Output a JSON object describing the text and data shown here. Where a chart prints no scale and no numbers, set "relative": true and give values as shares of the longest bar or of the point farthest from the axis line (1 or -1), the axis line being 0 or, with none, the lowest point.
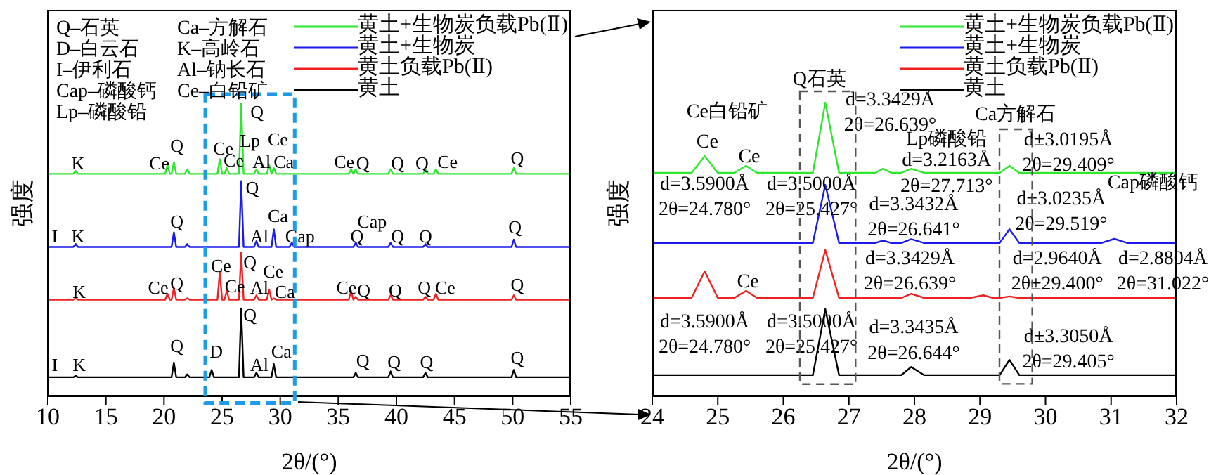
{
  "chart_data": [
    {
      "type": "line",
      "relative": true,
      "xlabel": "2θ/(°)",
      "ylabel": "强度",
      "xlim": [
        10,
        55
      ],
      "xticks": [
        10,
        15,
        20,
        25,
        30,
        35,
        40,
        45,
        50,
        55
      ],
      "legend": "top right",
      "marker": "none",
      "line_style": "solid",
      "x": [
        10,
        12.2,
        12.4,
        12.6,
        20.1,
        20.3,
        20.5,
        20.65,
        20.85,
        21.05,
        21.8,
        22.0,
        22.2,
        23.9,
        24.1,
        24.3,
        24.6,
        24.8,
        25.0,
        25.2,
        25.4,
        25.6,
        26.45,
        26.64,
        26.85,
        27.75,
        27.95,
        28.15,
        28.85,
        29.05,
        29.25,
        29.45,
        29.65,
        30.8,
        31.0,
        31.2,
        35.9,
        36.1,
        36.3,
        36.5,
        36.7,
        39.3,
        39.5,
        39.7,
        42.3,
        42.5,
        42.7,
        43.2,
        43.4,
        43.6,
        49.9,
        50.1,
        50.3,
        55
      ],
      "series": [
        {
          "name": "黄土+生物炭负载Pb(Ⅱ)",
          "color": "#2ee62e",
          "values": [
            0.76,
            0.76,
            0.77,
            0.76,
            0.76,
            0.79,
            0.76,
            0.76,
            0.8,
            0.76,
            0.76,
            0.775,
            0.76,
            0.76,
            0.76,
            0.76,
            0.76,
            0.81,
            0.76,
            0.76,
            0.78,
            0.76,
            0.76,
            1,
            0.76,
            0.76,
            0.775,
            0.76,
            0.76,
            0.79,
            0.76,
            0.78,
            0.76,
            0.76,
            0.76,
            0.76,
            0.76,
            0.775,
            0.76,
            0.775,
            0.76,
            0.76,
            0.775,
            0.76,
            0.76,
            0.775,
            0.76,
            0.76,
            0.775,
            0.76,
            0.76,
            0.78,
            0.76,
            0.76
          ]
        },
        {
          "name": "黄土+生物炭",
          "color": "#1a1aee",
          "values": [
            0.51,
            0.51,
            0.52,
            0.51,
            0.51,
            0.51,
            0.51,
            0.51,
            0.56,
            0.51,
            0.51,
            0.52,
            0.51,
            0.51,
            0.51,
            0.51,
            0.51,
            0.51,
            0.51,
            0.51,
            0.51,
            0.51,
            0.51,
            0.735,
            0.51,
            0.51,
            0.53,
            0.51,
            0.51,
            0.51,
            0.51,
            0.57,
            0.51,
            0.51,
            0.525,
            0.51,
            0.51,
            0.51,
            0.51,
            0.525,
            0.51,
            0.51,
            0.525,
            0.51,
            0.51,
            0.52,
            0.51,
            0.51,
            0.51,
            0.51,
            0.51,
            0.535,
            0.51,
            0.51
          ]
        },
        {
          "name": "黄土负载Pb(Ⅱ)",
          "color": "#ee2222",
          "values": [
            0.33,
            0.33,
            0.335,
            0.33,
            0.33,
            0.35,
            0.33,
            0.33,
            0.37,
            0.33,
            0.33,
            0.335,
            0.33,
            0.33,
            0.33,
            0.33,
            0.33,
            0.425,
            0.33,
            0.33,
            0.36,
            0.33,
            0.33,
            0.49,
            0.33,
            0.33,
            0.345,
            0.33,
            0.33,
            0.365,
            0.33,
            0.335,
            0.33,
            0.33,
            0.33,
            0.33,
            0.33,
            0.36,
            0.33,
            0.34,
            0.33,
            0.33,
            0.345,
            0.33,
            0.33,
            0.34,
            0.33,
            0.33,
            0.35,
            0.33,
            0.33,
            0.345,
            0.33,
            0.33
          ]
        },
        {
          "name": "黄土",
          "color": "#000000",
          "values": [
            0.065,
            0.065,
            0.07,
            0.065,
            0.065,
            0.065,
            0.065,
            0.065,
            0.115,
            0.065,
            0.065,
            0.075,
            0.065,
            0.065,
            0.09,
            0.065,
            0.065,
            0.065,
            0.065,
            0.065,
            0.065,
            0.065,
            0.065,
            0.3,
            0.065,
            0.065,
            0.08,
            0.065,
            0.065,
            0.065,
            0.065,
            0.11,
            0.065,
            0.065,
            0.065,
            0.065,
            0.065,
            0.065,
            0.065,
            0.08,
            0.065,
            0.065,
            0.085,
            0.065,
            0.065,
            0.08,
            0.065,
            0.065,
            0.065,
            0.065,
            0.065,
            0.09,
            0.065,
            0.065
          ]
        }
      ],
      "annotations": [
        "Q–石英",
        "Ca–方解石",
        "D–白云石",
        "K–高岭石",
        "I–伊利石",
        "Al–钠长石",
        "Cap–磷酸钙",
        "Ce–白铅矿",
        "Lp–磷酸铅",
        "K",
        "Ce",
        "Q",
        "Ce",
        "Ce",
        "Q",
        "Lp",
        "Ce",
        "Al",
        "Ca",
        "Ce",
        "Q",
        "Q",
        "Q",
        "Ce",
        "Q",
        "Q",
        "Q",
        "Ca",
        "I",
        "K",
        "Al",
        "Cap",
        "Q",
        "Cap",
        "Q",
        "Q",
        "Q",
        "Ce",
        "Q",
        "Ce",
        "K",
        "Ce",
        "Q",
        "Ce",
        "Al",
        "Ca",
        "Ce",
        "Q",
        "Q",
        "Q",
        "Ce",
        "Q",
        "Q",
        "Q",
        "D",
        "Ca",
        "Al",
        "I",
        "K",
        "Q",
        "Q",
        "Q",
        "Q"
      ]
    },
    {
      "type": "line",
      "relative": true,
      "xlabel": "2θ/(°)",
      "ylabel": "强度",
      "xlim": [
        24,
        32
      ],
      "xticks": [
        24,
        25,
        26,
        27,
        28,
        29,
        30,
        31,
        32
      ],
      "legend": "top right",
      "marker": "none",
      "line_style": "solid",
      "x": [
        24,
        24.6,
        24.8,
        25.0,
        25.25,
        25.43,
        25.6,
        26.45,
        26.64,
        26.85,
        27.4,
        27.52,
        27.65,
        27.8,
        27.95,
        28.15,
        28.85,
        29.05,
        29.2,
        29.3,
        29.45,
        29.6,
        29.75,
        30.85,
        31.05,
        31.25,
        32
      ],
      "series": [
        {
          "name": "黄土+生物炭负载Pb(Ⅱ)",
          "color": "#2ee62e",
          "values": [
            0.761,
            0.761,
            0.818,
            0.761,
            0.761,
            0.785,
            0.761,
            0.761,
            1,
            0.761,
            0.761,
            0.775,
            0.761,
            0.761,
            0.775,
            0.761,
            0.761,
            0.761,
            0.761,
            0.761,
            0.785,
            0.761,
            0.761,
            0.761,
            0.761,
            0.761,
            0.761
          ]
        },
        {
          "name": "黄土+生物炭",
          "color": "#1a1aee",
          "values": [
            0.522,
            0.522,
            0.522,
            0.522,
            0.522,
            0.522,
            0.522,
            0.522,
            0.72,
            0.522,
            0.522,
            0.53,
            0.522,
            0.522,
            0.535,
            0.522,
            0.522,
            0.522,
            0.522,
            0.522,
            0.569,
            0.522,
            0.522,
            0.522,
            0.536,
            0.522,
            0.522
          ]
        },
        {
          "name": "黄土负载Pb(Ⅱ)",
          "color": "#ee2222",
          "values": [
            0.335,
            0.335,
            0.426,
            0.335,
            0.335,
            0.359,
            0.335,
            0.335,
            0.498,
            0.335,
            0.335,
            0.335,
            0.335,
            0.335,
            0.349,
            0.335,
            0.335,
            0.344,
            0.335,
            0.335,
            0.34,
            0.335,
            0.335,
            0.335,
            0.335,
            0.335,
            0.335
          ]
        },
        {
          "name": "黄土",
          "color": "#000000",
          "values": [
            0.072,
            0.072,
            0.072,
            0.072,
            0.072,
            0.072,
            0.072,
            0.072,
            0.297,
            0.072,
            0.072,
            0.072,
            0.072,
            0.072,
            0.1,
            0.072,
            0.072,
            0.072,
            0.072,
            0.072,
            0.124,
            0.072,
            0.072,
            0.072,
            0.072,
            0.072,
            0.072
          ]
        }
      ],
      "annotations": [
        "Q石英",
        "Ca方解石",
        "Ce白铅矿",
        "Ce",
        "Ce",
        "d=3.3429Å\n2θ=26.639°",
        "Lp磷酸铅",
        "d=3.2163Å\n2θ=27.713°",
        "d±3.0195Å\n2θ=29.409°",
        "d=3.5900Å\n2θ=24.780°",
        "d=3.5000Å\n2θ=25.427°",
        "d=3.3432Å\n2θ=26.641°",
        "Cap磷酸钙",
        "d±3.0235Å\n2θ=29.519°",
        "d=3.3429Å\n2θ=26.639°",
        "d=2.9640Å\n2θ±29.400°",
        "d=2.8804Å\n2θ=31.022°",
        "Ce",
        "d=3.5900Å\n2θ=24.780°",
        "d=3.5000Å\n2θ=25.427°",
        "d=3.3435Å\n2θ=26.644°",
        "d±3.3050Å\n2θ=29.405°"
      ]
    }
  ]
}
